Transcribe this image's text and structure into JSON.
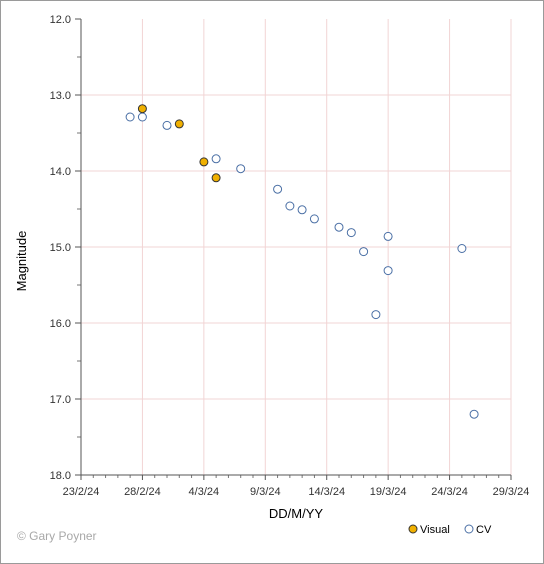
{
  "chart_data": {
    "type": "scatter",
    "title": "",
    "xlabel": "DD/M/YY",
    "ylabel": "Magnitude",
    "x_tick_labels": [
      "23/2/24",
      "28/2/24",
      "4/3/24",
      "9/3/24",
      "14/3/24",
      "19/3/24",
      "24/3/24",
      "29/3/24"
    ],
    "y_tick_labels": [
      "12.0",
      "13.0",
      "14.0",
      "15.0",
      "16.0",
      "17.0",
      "18.0"
    ],
    "xlim": [
      "2024-02-23",
      "2024-03-29"
    ],
    "ylim": [
      12.0,
      18.0
    ],
    "y_inverted": true,
    "grid": true,
    "legend_position": "bottom-right",
    "series": [
      {
        "name": "Visual",
        "color": "#f0b000",
        "marker": "filled-circle",
        "points": [
          {
            "x": "2024-02-28",
            "y": 13.18
          },
          {
            "x": "2024-03-02",
            "y": 13.38
          },
          {
            "x": "2024-03-04",
            "y": 13.88
          },
          {
            "x": "2024-03-05",
            "y": 14.09
          }
        ]
      },
      {
        "name": "CV",
        "color": "#4a6fa5",
        "marker": "open-circle",
        "points": [
          {
            "x": "2024-02-27",
            "y": 13.29
          },
          {
            "x": "2024-02-28",
            "y": 13.29
          },
          {
            "x": "2024-03-01",
            "y": 13.4
          },
          {
            "x": "2024-03-05",
            "y": 13.84
          },
          {
            "x": "2024-03-07",
            "y": 13.97
          },
          {
            "x": "2024-03-10",
            "y": 14.24
          },
          {
            "x": "2024-03-11",
            "y": 14.46
          },
          {
            "x": "2024-03-12",
            "y": 14.51
          },
          {
            "x": "2024-03-13",
            "y": 14.63
          },
          {
            "x": "2024-03-15",
            "y": 14.74
          },
          {
            "x": "2024-03-16",
            "y": 14.81
          },
          {
            "x": "2024-03-17",
            "y": 15.06
          },
          {
            "x": "2024-03-18",
            "y": 15.89
          },
          {
            "x": "2024-03-19",
            "y": 14.86
          },
          {
            "x": "2024-03-19",
            "y": 15.31
          },
          {
            "x": "2024-03-25",
            "y": 15.02
          },
          {
            "x": "2024-03-26",
            "y": 17.2
          }
        ]
      }
    ]
  },
  "credit": "© Gary Poyner"
}
